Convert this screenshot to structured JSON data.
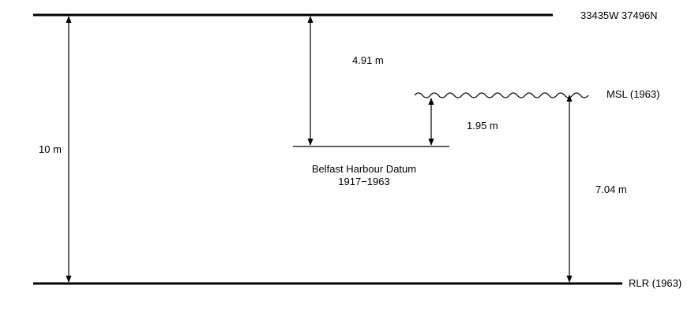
{
  "grid_ref": "33435W  37496N",
  "levels": {
    "msl": "MSL (1963)",
    "rlr": "RLR (1963)",
    "datum_name": "Belfast Harbour Datum",
    "datum_years": "1917−1963"
  },
  "measurements": {
    "total": "10 m",
    "top_to_datum": "4.91 m",
    "msl_to_datum": "1.95 m",
    "msl_to_rlr": "7.04 m"
  }
}
